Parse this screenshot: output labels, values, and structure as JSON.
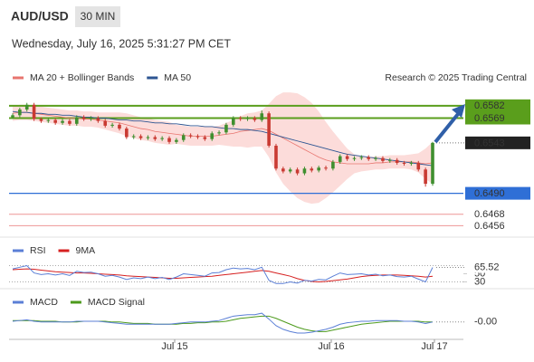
{
  "header": {
    "symbol": "AUD/USD",
    "interval": "30 MIN",
    "timestamp": "Wednesday, July 16, 2025 5:31:27 PM CET"
  },
  "chart_data": [
    {
      "type": "candlestick",
      "credit": "Research © 2025 Trading Central",
      "x_labels": [
        "Jul 15",
        "Jul 16",
        "Jul 17"
      ],
      "ylim": [
        0.6444,
        0.6598
      ],
      "up_color": "#3f8f2f",
      "down_color": "#c93a32",
      "open": [
        0.657,
        0.6572,
        0.6578,
        0.6583,
        0.6568,
        0.6566,
        0.6567,
        0.6564,
        0.6566,
        0.6563,
        0.657,
        0.6568,
        0.6569,
        0.6566,
        0.6561,
        0.6562,
        0.6558,
        0.6549,
        0.655,
        0.6548,
        0.6549,
        0.6547,
        0.6548,
        0.6544,
        0.6546,
        0.6551,
        0.655,
        0.6549,
        0.6547,
        0.6553,
        0.6554,
        0.6562,
        0.6569,
        0.6568,
        0.6569,
        0.6567,
        0.6574,
        0.654,
        0.6516,
        0.6513,
        0.6515,
        0.6511,
        0.6516,
        0.6514,
        0.6517,
        0.6516,
        0.6523,
        0.6529,
        0.6526,
        0.6527,
        0.6528,
        0.6526,
        0.6527,
        0.6524,
        0.6525,
        0.6522,
        0.6521,
        0.6522,
        0.6515,
        0.65
      ],
      "high": [
        0.6574,
        0.658,
        0.6585,
        0.6585,
        0.657,
        0.6569,
        0.6569,
        0.6568,
        0.6568,
        0.6572,
        0.6572,
        0.6571,
        0.6571,
        0.6568,
        0.6564,
        0.6564,
        0.656,
        0.6552,
        0.6552,
        0.6551,
        0.6551,
        0.655,
        0.655,
        0.6548,
        0.6553,
        0.6553,
        0.6552,
        0.6551,
        0.6555,
        0.6556,
        0.6564,
        0.6571,
        0.6571,
        0.6571,
        0.6571,
        0.6577,
        0.6576,
        0.6542,
        0.6518,
        0.6517,
        0.6517,
        0.6518,
        0.6518,
        0.6519,
        0.6519,
        0.6525,
        0.6531,
        0.6531,
        0.6529,
        0.653,
        0.653,
        0.6529,
        0.6529,
        0.6527,
        0.6527,
        0.6524,
        0.6524,
        0.6524,
        0.6517,
        0.6544
      ],
      "low": [
        0.6568,
        0.657,
        0.6576,
        0.6566,
        0.6564,
        0.6564,
        0.6562,
        0.6562,
        0.6561,
        0.6561,
        0.6566,
        0.6566,
        0.6564,
        0.6559,
        0.6559,
        0.6556,
        0.6547,
        0.6547,
        0.6546,
        0.6546,
        0.6545,
        0.6545,
        0.6542,
        0.6542,
        0.6544,
        0.6548,
        0.6547,
        0.6545,
        0.6545,
        0.6551,
        0.6552,
        0.656,
        0.6566,
        0.6566,
        0.6565,
        0.6565,
        0.6538,
        0.6514,
        0.6511,
        0.6511,
        0.6509,
        0.6509,
        0.6512,
        0.6512,
        0.6514,
        0.6514,
        0.6521,
        0.6524,
        0.6524,
        0.6525,
        0.6524,
        0.6524,
        0.6522,
        0.6522,
        0.652,
        0.6519,
        0.6519,
        0.6513,
        0.6497,
        0.6498
      ],
      "close": [
        0.6572,
        0.6578,
        0.6583,
        0.6568,
        0.6566,
        0.6567,
        0.6564,
        0.6566,
        0.6563,
        0.657,
        0.6568,
        0.6569,
        0.6566,
        0.6561,
        0.6562,
        0.6558,
        0.6549,
        0.655,
        0.6548,
        0.6549,
        0.6547,
        0.6548,
        0.6544,
        0.6546,
        0.6551,
        0.655,
        0.6549,
        0.6547,
        0.6553,
        0.6554,
        0.6562,
        0.6569,
        0.6568,
        0.6569,
        0.6567,
        0.6574,
        0.654,
        0.6516,
        0.6513,
        0.6515,
        0.6511,
        0.6516,
        0.6514,
        0.6517,
        0.6516,
        0.6523,
        0.6529,
        0.6526,
        0.6527,
        0.6528,
        0.6526,
        0.6527,
        0.6524,
        0.6525,
        0.6522,
        0.6521,
        0.6522,
        0.6515,
        0.65,
        0.6543
      ],
      "series": [
        {
          "name": "MA 20 + Bollinger Bands",
          "color": "#e8756f",
          "band_color": "#fcd6d3",
          "values": [
            0.6574,
            0.6575,
            0.6575,
            0.6574,
            0.6573,
            0.6572,
            0.6571,
            0.657,
            0.6569,
            0.6569,
            0.6568,
            0.6568,
            0.6567,
            0.6566,
            0.6565,
            0.6564,
            0.6562,
            0.656,
            0.6558,
            0.6557,
            0.6555,
            0.6554,
            0.6553,
            0.6552,
            0.6551,
            0.655,
            0.655,
            0.655,
            0.655,
            0.6551,
            0.6552,
            0.6553,
            0.6555,
            0.6556,
            0.6557,
            0.6558,
            0.6556,
            0.6552,
            0.6548,
            0.6544,
            0.654,
            0.6536,
            0.6532,
            0.6528,
            0.6525,
            0.6523,
            0.6522,
            0.6521,
            0.6521,
            0.6521,
            0.6521,
            0.6522,
            0.6522,
            0.6523,
            0.6523,
            0.6523,
            0.6523,
            0.6522,
            0.6521,
            0.6522
          ],
          "upper": [
            0.6582,
            0.6583,
            0.6583,
            0.6582,
            0.6581,
            0.658,
            0.6579,
            0.6578,
            0.6577,
            0.6577,
            0.6576,
            0.6576,
            0.6575,
            0.6575,
            0.6575,
            0.6575,
            0.6574,
            0.6572,
            0.657,
            0.6569,
            0.6567,
            0.6566,
            0.6565,
            0.6562,
            0.6561,
            0.656,
            0.656,
            0.656,
            0.656,
            0.6561,
            0.6564,
            0.6567,
            0.6571,
            0.6574,
            0.6575,
            0.6577,
            0.6584,
            0.6592,
            0.6596,
            0.6596,
            0.6595,
            0.6591,
            0.6585,
            0.6576,
            0.6565,
            0.6555,
            0.6546,
            0.6537,
            0.6531,
            0.6529,
            0.6528,
            0.6529,
            0.6529,
            0.653,
            0.653,
            0.653,
            0.6531,
            0.6532,
            0.6537,
            0.6544
          ],
          "lower": [
            0.6566,
            0.6567,
            0.6567,
            0.6566,
            0.6565,
            0.6564,
            0.6563,
            0.6562,
            0.6561,
            0.6561,
            0.656,
            0.656,
            0.6559,
            0.6557,
            0.6555,
            0.6553,
            0.655,
            0.6548,
            0.6546,
            0.6545,
            0.6543,
            0.6542,
            0.6541,
            0.6542,
            0.6541,
            0.654,
            0.654,
            0.654,
            0.654,
            0.6541,
            0.654,
            0.6539,
            0.6539,
            0.6538,
            0.6539,
            0.6539,
            0.6528,
            0.6512,
            0.65,
            0.6492,
            0.6485,
            0.6481,
            0.6479,
            0.648,
            0.6485,
            0.6491,
            0.6498,
            0.6505,
            0.6511,
            0.6513,
            0.6514,
            0.6515,
            0.6515,
            0.6516,
            0.6516,
            0.6516,
            0.6515,
            0.6512,
            0.6505,
            0.65
          ]
        },
        {
          "name": "MA 50",
          "color": "#2d5592",
          "values": [
            0.6576,
            0.6575,
            0.6575,
            0.6574,
            0.6574,
            0.6573,
            0.6573,
            0.6572,
            0.6572,
            0.6571,
            0.657,
            0.657,
            0.6569,
            0.6569,
            0.6568,
            0.6567,
            0.6567,
            0.6566,
            0.6566,
            0.6565,
            0.6564,
            0.6564,
            0.6563,
            0.6563,
            0.6562,
            0.6561,
            0.6561,
            0.656,
            0.656,
            0.6559,
            0.6558,
            0.6558,
            0.6557,
            0.6557,
            0.6556,
            0.6555,
            0.6553,
            0.6551,
            0.6549,
            0.6547,
            0.6545,
            0.6543,
            0.6541,
            0.6539,
            0.6537,
            0.6535,
            0.6533,
            0.6531,
            0.653,
            0.6529,
            0.6528,
            0.6527,
            0.6526,
            0.6525,
            0.6524,
            0.6523,
            0.6522,
            0.6521,
            0.652,
            0.6519
          ]
        }
      ],
      "levels": [
        {
          "value": 0.6582,
          "color": "#5a9e1c",
          "style": "box"
        },
        {
          "value": 0.6569,
          "color": "#5a9e1c",
          "style": "box"
        },
        {
          "value": 0.6543,
          "color": "#222222",
          "style": "last"
        },
        {
          "value": 0.649,
          "label": "0.6490",
          "color": "#2f6fd6",
          "style": "box"
        },
        {
          "value": 0.6468,
          "color": "#e04040",
          "style": "text"
        },
        {
          "value": 0.6456,
          "color": "#e04040",
          "style": "text"
        }
      ]
    },
    {
      "type": "line",
      "ylim": [
        20,
        80
      ],
      "yticks": [
        30,
        50
      ],
      "guides": [
        70,
        30
      ],
      "series": [
        {
          "name": "RSI",
          "color": "#5b7fd6",
          "values": [
            62,
            66,
            70,
            52,
            48,
            50,
            47,
            50,
            46,
            56,
            53,
            54,
            50,
            44,
            46,
            42,
            36,
            40,
            38,
            42,
            38,
            41,
            36,
            42,
            50,
            48,
            46,
            44,
            52,
            53,
            60,
            64,
            62,
            63,
            60,
            66,
            34,
            26,
            26,
            30,
            27,
            34,
            32,
            36,
            35,
            44,
            52,
            48,
            49,
            50,
            47,
            49,
            45,
            47,
            43,
            42,
            44,
            37,
            30,
            65.52
          ]
        },
        {
          "name": "9MA",
          "color": "#d62020",
          "values": [
            60,
            61,
            62,
            61,
            59,
            57,
            55,
            54,
            53,
            52,
            52,
            51,
            50,
            49,
            48,
            47,
            45,
            44,
            43,
            42,
            41,
            40,
            39,
            39,
            40,
            41,
            42,
            43,
            44,
            46,
            48,
            50,
            52,
            54,
            56,
            58,
            56,
            52,
            48,
            44,
            38,
            34,
            31,
            30,
            31,
            33,
            35,
            37,
            40,
            43,
            45,
            46,
            47,
            47,
            47,
            46,
            45,
            44,
            42,
            44
          ]
        }
      ]
    },
    {
      "type": "line",
      "ylim": [
        -0.0022,
        0.002
      ],
      "series": [
        {
          "name": "MACD",
          "color": "#5b7fd6",
          "last_value_label": "-0.00",
          "values": [
            -0.0001,
            0,
            0.0001,
            -0.0001,
            -0.0002,
            -0.0002,
            -0.0002,
            -0.0002,
            -0.0002,
            -0.0001,
            -0.0001,
            -0.0001,
            -0.0001,
            -0.0002,
            -0.0003,
            -0.0004,
            -0.0005,
            -0.0005,
            -0.0005,
            -0.0005,
            -0.0005,
            -0.0005,
            -0.0005,
            -0.0004,
            -0.0003,
            -0.0002,
            -0.0002,
            -0.0002,
            -0.0001,
            0,
            0.0003,
            0.0006,
            0.0007,
            0.0008,
            0.0008,
            0.001,
            0.0002,
            -0.0007,
            -0.0012,
            -0.0015,
            -0.0017,
            -0.0017,
            -0.0016,
            -0.0014,
            -0.0012,
            -0.0009,
            -0.0005,
            -0.0003,
            -0.0002,
            -0.0001,
            -0.0001,
            0,
            0,
            0,
            0,
            -0.0001,
            -0.0001,
            -0.0002,
            -0.0004,
            -0.0002
          ]
        },
        {
          "name": "MACD Signal",
          "color": "#4c9a1c",
          "values": [
            0,
            0,
            0,
            0,
            -0.0001,
            -0.0001,
            -0.0001,
            -0.0002,
            -0.0002,
            -0.0002,
            -0.0001,
            -0.0001,
            -0.0001,
            -0.0001,
            -0.0002,
            -0.0002,
            -0.0003,
            -0.0004,
            -0.0004,
            -0.0004,
            -0.0005,
            -0.0005,
            -0.0005,
            -0.0005,
            -0.0004,
            -0.0004,
            -0.0003,
            -0.0003,
            -0.0002,
            -0.0002,
            -0.0001,
            0.0001,
            0.0003,
            0.0004,
            0.0005,
            0.0006,
            0.0006,
            0.0003,
            -0.0001,
            -0.0005,
            -0.0009,
            -0.0012,
            -0.0014,
            -0.0015,
            -0.0015,
            -0.0013,
            -0.0011,
            -0.0009,
            -0.0007,
            -0.0005,
            -0.0004,
            -0.0003,
            -0.0002,
            -0.0001,
            -0.0001,
            -0.0001,
            -0.0001,
            -0.0001,
            -0.0002,
            -0.0002
          ]
        }
      ]
    }
  ]
}
